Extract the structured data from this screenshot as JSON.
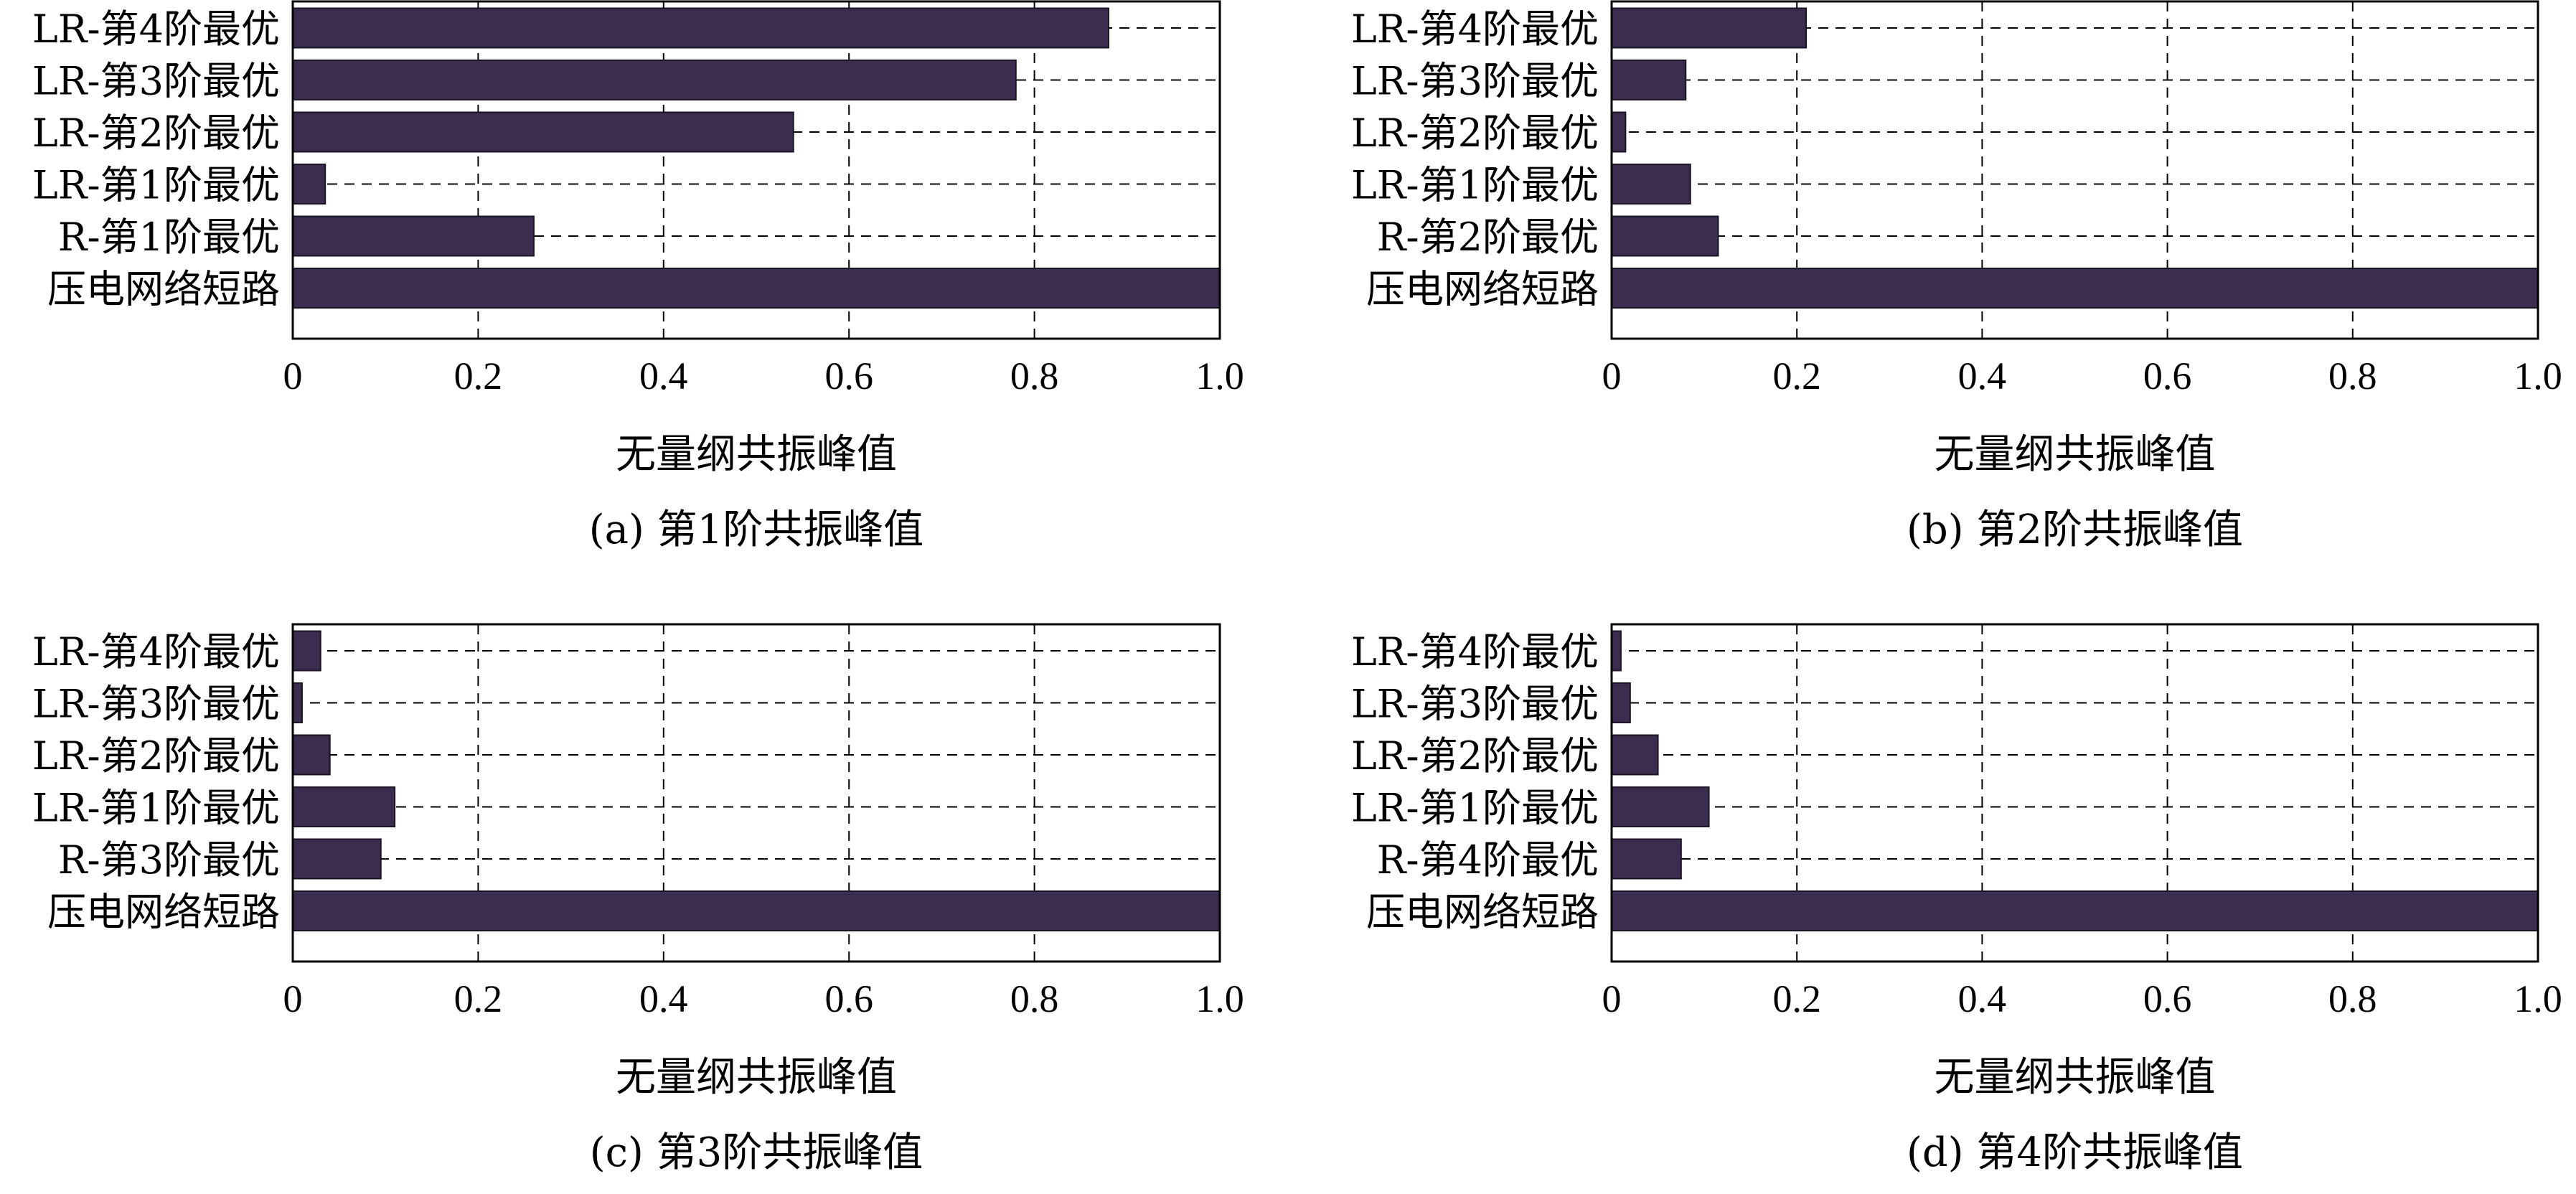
{
  "chart_data": [
    {
      "type": "bar",
      "orientation": "horizontal",
      "caption": "(a) 第1阶共振峰值",
      "xlabel": "无量纲共振峰值",
      "ylabel": "",
      "xlim": [
        0,
        1.0
      ],
      "xticks": [
        "0",
        "0.2",
        "0.4",
        "0.6",
        "0.8",
        "1.0"
      ],
      "grid": true,
      "categories": [
        "压电网络短路",
        "R-第1阶最优",
        "LR-第1阶最优",
        "LR-第2阶最优",
        "LR-第3阶最优",
        "LR-第4阶最优"
      ],
      "values": [
        1.0,
        0.26,
        0.035,
        0.54,
        0.78,
        0.88
      ],
      "color": "#3b2d50"
    },
    {
      "type": "bar",
      "orientation": "horizontal",
      "caption": "(b) 第2阶共振峰值",
      "xlabel": "无量纲共振峰值",
      "ylabel": "",
      "xlim": [
        0,
        1.0
      ],
      "xticks": [
        "0",
        "0.2",
        "0.4",
        "0.6",
        "0.8",
        "1.0"
      ],
      "grid": true,
      "categories": [
        "压电网络短路",
        "R-第2阶最优",
        "LR-第1阶最优",
        "LR-第2阶最优",
        "LR-第3阶最优",
        "LR-第4阶最优"
      ],
      "values": [
        1.0,
        0.115,
        0.085,
        0.015,
        0.08,
        0.21
      ],
      "color": "#3b2d50"
    },
    {
      "type": "bar",
      "orientation": "horizontal",
      "caption": "(c) 第3阶共振峰值",
      "xlabel": "无量纲共振峰值",
      "ylabel": "",
      "xlim": [
        0,
        1.0
      ],
      "xticks": [
        "0",
        "0.2",
        "0.4",
        "0.6",
        "0.8",
        "1.0"
      ],
      "grid": true,
      "categories": [
        "压电网络短路",
        "R-第3阶最优",
        "LR-第1阶最优",
        "LR-第2阶最优",
        "LR-第3阶最优",
        "LR-第4阶最优"
      ],
      "values": [
        1.0,
        0.095,
        0.11,
        0.04,
        0.01,
        0.03
      ],
      "color": "#3b2d50"
    },
    {
      "type": "bar",
      "orientation": "horizontal",
      "caption": "(d) 第4阶共振峰值",
      "xlabel": "无量纲共振峰值",
      "ylabel": "",
      "xlim": [
        0,
        1.0
      ],
      "xticks": [
        "0",
        "0.2",
        "0.4",
        "0.6",
        "0.8",
        "1.0"
      ],
      "grid": true,
      "categories": [
        "压电网络短路",
        "R-第4阶最优",
        "LR-第1阶最优",
        "LR-第2阶最优",
        "LR-第3阶最优",
        "LR-第4阶最优"
      ],
      "values": [
        1.0,
        0.075,
        0.105,
        0.05,
        0.02,
        0.01
      ],
      "color": "#3b2d50"
    }
  ]
}
